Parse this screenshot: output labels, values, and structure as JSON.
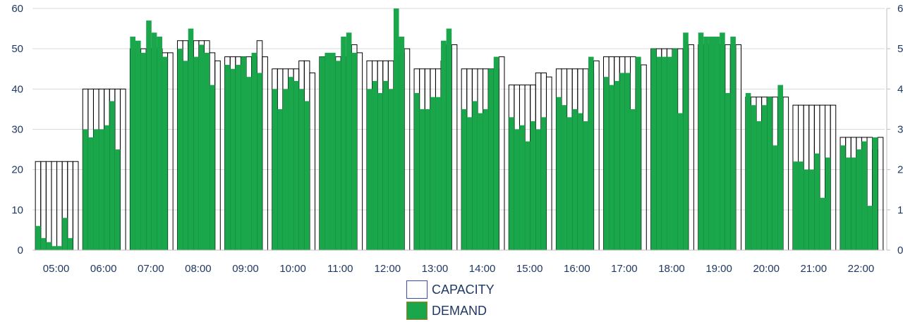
{
  "chart_data": {
    "type": "bar",
    "categories": [
      "05:00",
      "06:00",
      "07:00",
      "08:00",
      "09:00",
      "10:00",
      "11:00",
      "12:00",
      "13:00",
      "14:00",
      "15:00",
      "16:00",
      "17:00",
      "18:00",
      "19:00",
      "20:00",
      "21:00",
      "22:00"
    ],
    "y_ticks": [
      "0",
      "10",
      "20",
      "30",
      "40",
      "50",
      "60"
    ],
    "right_ticks": [
      "0",
      "1",
      "2",
      "3",
      "4",
      "5",
      "6"
    ],
    "ylim": [
      0,
      60
    ],
    "grid": true,
    "legend_position": "bottom",
    "series": [
      {
        "name": "CAPACITY",
        "color": "#ffffff",
        "values": [
          [
            22,
            22,
            22,
            22,
            22,
            22,
            22,
            22
          ],
          [
            40,
            40,
            40,
            40,
            40,
            40,
            40,
            40
          ],
          [
            50,
            50,
            50,
            50,
            50,
            50,
            49,
            49
          ],
          [
            52,
            52,
            52,
            52,
            52,
            52,
            49,
            47
          ],
          [
            48,
            48,
            48,
            48,
            48,
            48,
            52,
            48
          ],
          [
            45,
            45,
            45,
            45,
            45,
            47,
            47,
            44
          ],
          [
            48,
            48,
            48,
            48,
            48,
            48,
            51,
            49
          ],
          [
            47,
            47,
            47,
            47,
            47,
            47,
            49,
            50
          ],
          [
            45,
            45,
            45,
            45,
            45,
            47,
            51,
            51
          ],
          [
            45,
            45,
            45,
            45,
            45,
            45,
            45,
            48
          ],
          [
            41,
            41,
            41,
            41,
            41,
            44,
            44,
            43
          ],
          [
            45,
            45,
            45,
            45,
            45,
            45,
            44,
            47
          ],
          [
            48,
            48,
            48,
            48,
            48,
            48,
            40,
            46
          ],
          [
            50,
            50,
            50,
            50,
            50,
            50,
            50,
            51
          ],
          [
            51,
            51,
            51,
            51,
            51,
            51,
            50,
            51
          ],
          [
            38,
            38,
            38,
            38,
            38,
            38,
            38,
            38
          ],
          [
            36,
            36,
            36,
            36,
            36,
            36,
            36,
            36
          ],
          [
            28,
            28,
            28,
            28,
            28,
            28,
            25,
            28
          ]
        ]
      },
      {
        "name": "DEMAND",
        "color": "#1aa64a",
        "values": [
          [
            6,
            3,
            2,
            1,
            1,
            8,
            3,
            0
          ],
          [
            30,
            28,
            30,
            30,
            31,
            37,
            25,
            0
          ],
          [
            53,
            52,
            49,
            57,
            54,
            53,
            48,
            0
          ],
          [
            50,
            47,
            55,
            48,
            51,
            49,
            41,
            0
          ],
          [
            46,
            45,
            46,
            48,
            43,
            49,
            44,
            0
          ],
          [
            40,
            35,
            40,
            43,
            42,
            40,
            37,
            0
          ],
          [
            48,
            49,
            49,
            47,
            53,
            54,
            49,
            0
          ],
          [
            40,
            42,
            39,
            42,
            40,
            60,
            53,
            0
          ],
          [
            39,
            35,
            35,
            38,
            38,
            52,
            55,
            0
          ],
          [
            35,
            33,
            37,
            34,
            35,
            45,
            48,
            0
          ],
          [
            33,
            30,
            31,
            27,
            32,
            30,
            33,
            0
          ],
          [
            38,
            36,
            33,
            35,
            34,
            32,
            48,
            0
          ],
          [
            43,
            41,
            42,
            44,
            44,
            35,
            48,
            0
          ],
          [
            50,
            48,
            48,
            48,
            50,
            34,
            54,
            0
          ],
          [
            54,
            53,
            53,
            53,
            54,
            39,
            53,
            0
          ],
          [
            39,
            36,
            32,
            36,
            38,
            26,
            41,
            0
          ],
          [
            22,
            22,
            20,
            20,
            24,
            13,
            23,
            0
          ],
          [
            26,
            23,
            23,
            25,
            27,
            11,
            28,
            0
          ]
        ]
      }
    ]
  }
}
